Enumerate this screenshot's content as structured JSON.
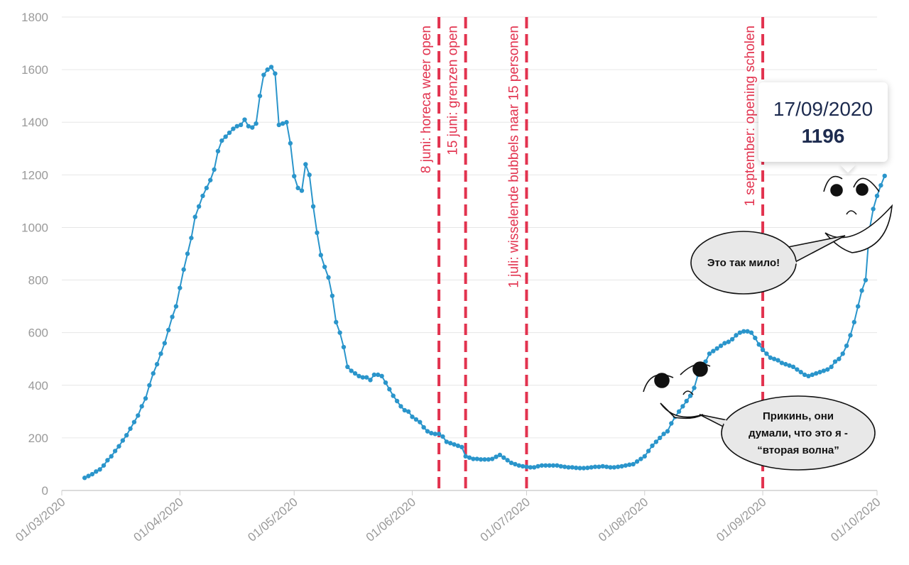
{
  "chart_data": {
    "type": "line",
    "color": "#2a95cb",
    "event_color": "#e2334f",
    "grid": true,
    "ylim": [
      0,
      1800
    ],
    "yticks": [
      "0",
      "200",
      "400",
      "600",
      "800",
      "1000",
      "1200",
      "1400",
      "1600",
      "1800"
    ],
    "xticks": [
      "01/03/2020",
      "01/04/2020",
      "01/05/2020",
      "01/06/2020",
      "01/07/2020",
      "01/08/2020",
      "01/09/2020",
      "01/10/2020"
    ],
    "xlim_days": [
      0,
      214
    ],
    "x_start_day": 6,
    "values": [
      48,
      55,
      62,
      72,
      80,
      95,
      115,
      130,
      150,
      168,
      190,
      210,
      235,
      260,
      285,
      320,
      350,
      400,
      445,
      480,
      520,
      560,
      610,
      660,
      700,
      770,
      840,
      900,
      960,
      1040,
      1080,
      1120,
      1150,
      1180,
      1220,
      1290,
      1330,
      1345,
      1360,
      1375,
      1385,
      1390,
      1410,
      1385,
      1380,
      1395,
      1500,
      1580,
      1600,
      1610,
      1585,
      1390,
      1395,
      1400,
      1320,
      1195,
      1150,
      1140,
      1240,
      1200,
      1080,
      980,
      895,
      850,
      810,
      740,
      640,
      600,
      545,
      470,
      455,
      445,
      435,
      430,
      430,
      420,
      440,
      440,
      435,
      410,
      385,
      360,
      340,
      320,
      305,
      300,
      280,
      270,
      260,
      240,
      225,
      218,
      215,
      215,
      205,
      185,
      180,
      175,
      170,
      165,
      130,
      125,
      120,
      120,
      118,
      118,
      118,
      120,
      128,
      135,
      125,
      115,
      105,
      100,
      95,
      92,
      90,
      88,
      88,
      92,
      95,
      95,
      95,
      95,
      95,
      92,
      90,
      88,
      88,
      86,
      85,
      85,
      86,
      88,
      90,
      90,
      92,
      90,
      88,
      88,
      90,
      92,
      95,
      98,
      100,
      110,
      120,
      130,
      150,
      170,
      185,
      200,
      215,
      225,
      255,
      280,
      300,
      320,
      340,
      360,
      390,
      440,
      470,
      490,
      520,
      530,
      540,
      550,
      560,
      565,
      575,
      590,
      600,
      605,
      605,
      600,
      580,
      555,
      535,
      520,
      505,
      500,
      495,
      485,
      480,
      475,
      470,
      460,
      450,
      440,
      435,
      440,
      445,
      450,
      455,
      460,
      470,
      490,
      500,
      520,
      550,
      590,
      640,
      700,
      760,
      800,
      990,
      1070,
      1120,
      1160,
      1196
    ],
    "events": [
      {
        "day": 99,
        "label": "8 juni: horeca weer open"
      },
      {
        "day": 106,
        "label": "15 juni: grenzen open"
      },
      {
        "day": 122,
        "label": "1 juli: wisselende bubbels naar 15 personen"
      },
      {
        "day": 184,
        "label": "1 september: opening scholen"
      }
    ],
    "tooltip": {
      "date": "17/09/2020",
      "value": "1196"
    }
  },
  "annotations": {
    "bubble_top": "Это так мило!",
    "bubble_bottom": [
      "Прикинь, они",
      "думали, что это я -",
      "“вторая волна”"
    ]
  }
}
